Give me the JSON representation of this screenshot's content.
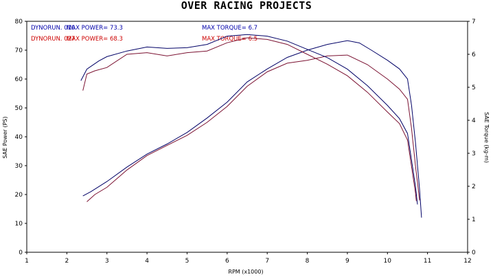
{
  "chart_data": {
    "type": "line",
    "title": "OVER RACING PROJECTS",
    "xlabel": "RPM (x1000)",
    "ylabel_left": "SAE Power (PS)",
    "ylabel_right": "SAE Torque (kg-m)",
    "xlim": [
      1,
      12
    ],
    "ylim_left": [
      0,
      80
    ],
    "ylim_right": [
      0,
      7
    ],
    "x_ticks": [
      "1",
      "2",
      "3",
      "4",
      "5",
      "6",
      "7",
      "8",
      "9",
      "10",
      "11",
      "12"
    ],
    "y_left_ticks": [
      "0",
      "10",
      "20",
      "30",
      "40",
      "50",
      "60",
      "70",
      "80"
    ],
    "y_right_ticks": [
      "0",
      "1",
      "2",
      "3",
      "4",
      "5",
      "6",
      "7"
    ],
    "grid": false,
    "legend": [
      {
        "run": "DYNORUN. 010",
        "power": "MAX POWER= 73.3",
        "torque": "MAX TORQUE= 6.7",
        "color": "#0000aa"
      },
      {
        "run": "DYNORUN. 027",
        "power": "MAX POWER= 68.3",
        "torque": "MAX TORQUE= 6.5",
        "color": "#cc0000"
      }
    ],
    "series": [
      {
        "run": 0,
        "kind": "power",
        "axis": "left",
        "color": "#000066",
        "points": [
          [
            2.4,
            19.5
          ],
          [
            2.6,
            21
          ],
          [
            3,
            24.5
          ],
          [
            3.5,
            29.5
          ],
          [
            4,
            34
          ],
          [
            4.5,
            37.5
          ],
          [
            5,
            41.5
          ],
          [
            5.5,
            46.5
          ],
          [
            6,
            52
          ],
          [
            6.5,
            59
          ],
          [
            7,
            63.5
          ],
          [
            7.5,
            67.5
          ],
          [
            8,
            70
          ],
          [
            8.5,
            72
          ],
          [
            9,
            73.3
          ],
          [
            9.3,
            72.5
          ],
          [
            9.6,
            70
          ],
          [
            10,
            66.5
          ],
          [
            10.3,
            63.5
          ],
          [
            10.5,
            60
          ],
          [
            10.6,
            51
          ],
          [
            10.7,
            38
          ],
          [
            10.8,
            22
          ],
          [
            10.85,
            12
          ]
        ]
      },
      {
        "run": 1,
        "kind": "power",
        "axis": "left",
        "color": "#7a1030",
        "points": [
          [
            2.5,
            17.5
          ],
          [
            2.7,
            20
          ],
          [
            3,
            22.5
          ],
          [
            3.5,
            28.5
          ],
          [
            4,
            33.5
          ],
          [
            4.5,
            37
          ],
          [
            5,
            40.5
          ],
          [
            5.5,
            45
          ],
          [
            6,
            50.5
          ],
          [
            6.5,
            57.5
          ],
          [
            7,
            62.5
          ],
          [
            7.5,
            65.5
          ],
          [
            8,
            66.5
          ],
          [
            8.5,
            68
          ],
          [
            9,
            68.3
          ],
          [
            9.5,
            65
          ],
          [
            10,
            60
          ],
          [
            10.3,
            56.5
          ],
          [
            10.5,
            53
          ],
          [
            10.6,
            43
          ],
          [
            10.7,
            30
          ],
          [
            10.8,
            18
          ]
        ]
      },
      {
        "run": 0,
        "kind": "torque",
        "axis": "right",
        "color": "#000066",
        "points": [
          [
            2.35,
            5.2
          ],
          [
            2.5,
            5.55
          ],
          [
            2.8,
            5.8
          ],
          [
            3,
            5.93
          ],
          [
            3.5,
            6.1
          ],
          [
            4,
            6.22
          ],
          [
            4.5,
            6.18
          ],
          [
            5,
            6.2
          ],
          [
            5.5,
            6.3
          ],
          [
            6,
            6.55
          ],
          [
            6.5,
            6.6
          ],
          [
            7,
            6.55
          ],
          [
            7.5,
            6.4
          ],
          [
            8,
            6.15
          ],
          [
            8.5,
            5.9
          ],
          [
            9,
            5.55
          ],
          [
            9.5,
            5.05
          ],
          [
            10,
            4.45
          ],
          [
            10.3,
            4.05
          ],
          [
            10.5,
            3.6
          ],
          [
            10.6,
            2.8
          ],
          [
            10.7,
            2
          ],
          [
            10.75,
            1.45
          ]
        ]
      },
      {
        "run": 1,
        "kind": "torque",
        "axis": "right",
        "color": "#7a1030",
        "points": [
          [
            2.4,
            4.9
          ],
          [
            2.5,
            5.4
          ],
          [
            2.7,
            5.5
          ],
          [
            3,
            5.6
          ],
          [
            3.5,
            6
          ],
          [
            4,
            6.05
          ],
          [
            4.5,
            5.95
          ],
          [
            5,
            6.05
          ],
          [
            5.5,
            6.1
          ],
          [
            6,
            6.35
          ],
          [
            6.5,
            6.5
          ],
          [
            7,
            6.45
          ],
          [
            7.5,
            6.3
          ],
          [
            8,
            6
          ],
          [
            8.5,
            5.7
          ],
          [
            9,
            5.35
          ],
          [
            9.5,
            4.85
          ],
          [
            10,
            4.25
          ],
          [
            10.3,
            3.9
          ],
          [
            10.5,
            3.4
          ],
          [
            10.6,
            2.6
          ],
          [
            10.7,
            1.8
          ],
          [
            10.72,
            1.55
          ]
        ]
      }
    ]
  }
}
